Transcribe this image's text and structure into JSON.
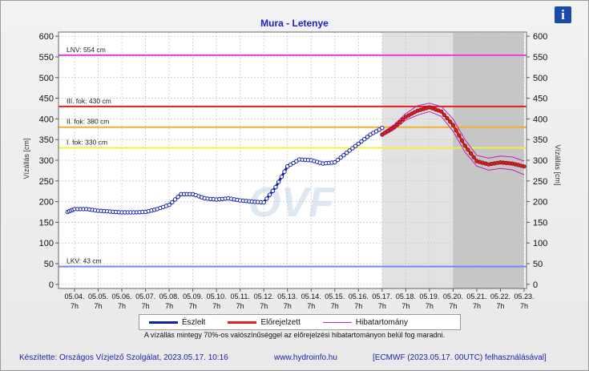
{
  "info_icon": "info-icon",
  "chart_data": {
    "type": "line",
    "title": "Mura - Letenye",
    "ylabel_left": "Vízállás [cm]",
    "ylabel_right": "Vízállás [cm]",
    "ylim": [
      -10,
      610
    ],
    "y_ticks": [
      0,
      50,
      100,
      150,
      200,
      250,
      300,
      350,
      400,
      450,
      500,
      550,
      600
    ],
    "x_tick_dates": [
      "05.04.",
      "05.05.",
      "05.06.",
      "05.07.",
      "05.08.",
      "05.09.",
      "05.10.",
      "05.11.",
      "05.12.",
      "05.13.",
      "05.14.",
      "05.15.",
      "05.16.",
      "05.17.",
      "05.18.",
      "05.19.",
      "05.20.",
      "05.21.",
      "05.22.",
      "05.23."
    ],
    "x_tick_hour": "7h",
    "grid": true,
    "forecast_shading": [
      {
        "from": "05.17. 7h",
        "to": "05.20. 7h",
        "color": "#e2e2e2"
      },
      {
        "from": "05.20. 7h",
        "to": "05.23. 7h",
        "color": "#c6c6c6"
      }
    ],
    "reference_lines": [
      {
        "label": "LNV: 554 cm",
        "value": 554,
        "color": "#e040e0"
      },
      {
        "label": "III. fok: 430 cm",
        "value": 430,
        "color": "#e02020"
      },
      {
        "label": "II. fok: 380 cm",
        "value": 380,
        "color": "#f0b030"
      },
      {
        "label": "I. fok: 330 cm",
        "value": 330,
        "color": "#f0f040"
      },
      {
        "label": "LKV: 43 cm",
        "value": 43,
        "color": "#8080ff"
      }
    ],
    "series": [
      {
        "name": "Észlelt",
        "color": "#1020a0",
        "x": [
          "05.04. 0h",
          "05.04. 7h",
          "05.04. 19h",
          "05.05. 7h",
          "05.05. 19h",
          "05.06. 7h",
          "05.06. 19h",
          "05.07. 7h",
          "05.07. 19h",
          "05.08. 7h",
          "05.08. 19h",
          "05.09. 7h",
          "05.09. 19h",
          "05.10. 7h",
          "05.10. 19h",
          "05.11. 7h",
          "05.11. 19h",
          "05.12. 7h",
          "05.12. 19h",
          "05.13. 7h",
          "05.13. 19h",
          "05.14. 7h",
          "05.14. 19h",
          "05.15. 7h",
          "05.15. 19h",
          "05.16. 7h",
          "05.16. 19h",
          "05.17. 7h"
        ],
        "y": [
          175,
          182,
          182,
          178,
          176,
          174,
          174,
          175,
          182,
          192,
          218,
          218,
          208,
          205,
          208,
          203,
          200,
          198,
          235,
          285,
          302,
          300,
          292,
          295,
          318,
          340,
          362,
          378
        ]
      },
      {
        "name": "Előrejelzett",
        "color": "#e02020",
        "x": [
          "05.17. 7h",
          "05.17. 19h",
          "05.18. 7h",
          "05.18. 19h",
          "05.19. 7h",
          "05.19. 19h",
          "05.20. 7h",
          "05.20. 19h",
          "05.21. 7h",
          "05.21. 19h",
          "05.22. 7h",
          "05.22. 19h",
          "05.23. 7h"
        ],
        "y": [
          362,
          380,
          405,
          420,
          428,
          418,
          385,
          335,
          298,
          290,
          295,
          292,
          285
        ]
      },
      {
        "name": "Hibatartomány",
        "color": "#c020c0",
        "x": [
          "05.17. 7h",
          "05.17. 19h",
          "05.18. 7h",
          "05.18. 19h",
          "05.19. 7h",
          "05.19. 19h",
          "05.20. 7h",
          "05.20. 19h",
          "05.21. 7h",
          "05.21. 19h",
          "05.22. 7h",
          "05.22. 19h",
          "05.23. 7h"
        ],
        "upper": [
          366,
          386,
          413,
          432,
          438,
          430,
          400,
          350,
          312,
          305,
          310,
          308,
          298
        ],
        "lower": [
          358,
          374,
          397,
          409,
          418,
          406,
          370,
          320,
          286,
          276,
          280,
          277,
          265
        ]
      }
    ]
  },
  "legend": {
    "observed": "Észlelt",
    "forecast": "Előrejelzett",
    "error_band": "Hibatartomány"
  },
  "footnote": "A vízállás mintegy 70%-os valószínűséggel az előrejelzési hibatartományon belül fog maradni.",
  "footer": {
    "author": "Készítette: Országos Vízjelző Szolgálat, 2023.05.17. 10:16",
    "website": "www.hydroinfo.hu",
    "model": "[ECMWF (2023.05.17. 00UTC) felhasználásával]"
  }
}
